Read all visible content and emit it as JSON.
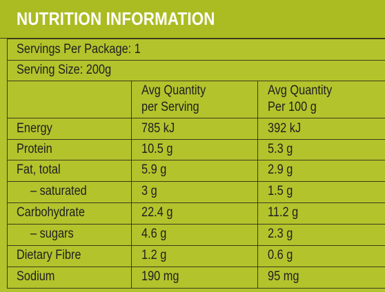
{
  "title": "NUTRITION INFORMATION",
  "servings_per_package": "Servings Per Package: 1",
  "serving_size": "Serving Size: 200g",
  "headers": {
    "col2_line1": "Avg Quantity",
    "col2_line2": "per Serving",
    "col3_line1": "Avg Quantity",
    "col3_line2": "Per 100 g"
  },
  "rows": [
    {
      "name": "Energy",
      "per_serving": "785 kJ",
      "per_100g": "392 kJ"
    },
    {
      "name": "Protein",
      "per_serving": "10.5 g",
      "per_100g": "5.3 g"
    },
    {
      "name": "Fat, total",
      "per_serving": "5.9 g",
      "per_100g": "2.9 g"
    },
    {
      "name": "– saturated",
      "per_serving": "3 g",
      "per_100g": "1.5 g"
    },
    {
      "name": "Carbohydrate",
      "per_serving": "22.4 g",
      "per_100g": "11.2 g"
    },
    {
      "name": "– sugars",
      "per_serving": "4.6 g",
      "per_100g": "2.3 g"
    },
    {
      "name": "Dietary Fibre",
      "per_serving": "1.2 g",
      "per_100g": "0.6 g"
    },
    {
      "name": "Sodium",
      "per_serving": "190 mg",
      "per_100g": "95 mg"
    }
  ]
}
